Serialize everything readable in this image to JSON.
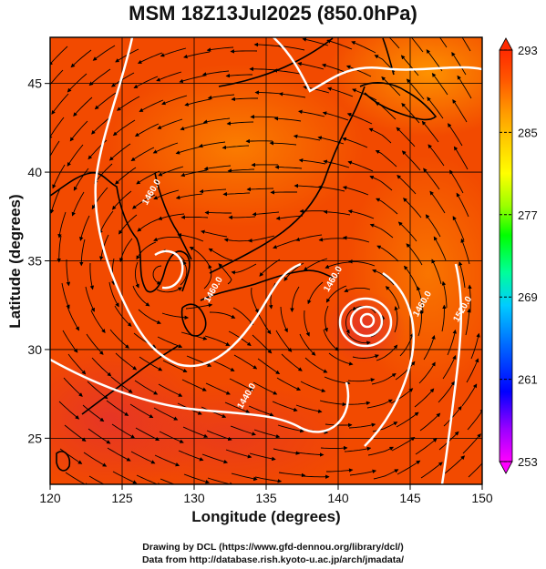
{
  "title": "MSM 18Z13Jul2025 (850.0hPa)",
  "xlabel": "Longitude (degrees)",
  "ylabel": "Latitude  (degrees)",
  "credits": {
    "line1": "Drawing by DCL (https://www.gfd-dennou.org/library/dcl/)",
    "line2": "Data from http://database.rish.kyoto-u.ac.jp/arch/jmadata/"
  },
  "chart_data": {
    "type": "heatmap",
    "xlim": [
      120,
      150
    ],
    "ylim": [
      22.4,
      47.6
    ],
    "x_ticks": [
      120,
      125,
      130,
      135,
      140,
      145,
      150
    ],
    "y_ticks": [
      25,
      30,
      35,
      40,
      45
    ],
    "grid": true,
    "colorbar": {
      "range": [
        253,
        293
      ],
      "tick_labels": [
        "293",
        "285",
        "277",
        "269",
        "261",
        "253"
      ],
      "colors": [
        "#ff00ff",
        "#9900ff",
        "#0000ff",
        "#0066ff",
        "#00ccff",
        "#00ff99",
        "#00ff00",
        "#99ff00",
        "#ffff00",
        "#ffcc00",
        "#ff9900",
        "#ff5500",
        "#ff2a00"
      ]
    },
    "contour_labels": [
      {
        "text": "1460.0",
        "lon": 127.2,
        "lat": 38.8
      },
      {
        "text": "1460.0",
        "lon": 131.5,
        "lat": 33.3
      },
      {
        "text": "1460.0",
        "lon": 139.8,
        "lat": 33.9
      },
      {
        "text": "1440.0",
        "lon": 133.8,
        "lat": 27.3
      },
      {
        "text": "1460.0",
        "lon": 146.0,
        "lat": 32.5
      },
      {
        "text": "1520.0",
        "lon": 148.8,
        "lat": 32.2
      }
    ]
  },
  "colors": {
    "field_base": "#f24a00",
    "field_warm": "#ff8a00",
    "contour": "#ffffff",
    "coast": "#000000"
  }
}
